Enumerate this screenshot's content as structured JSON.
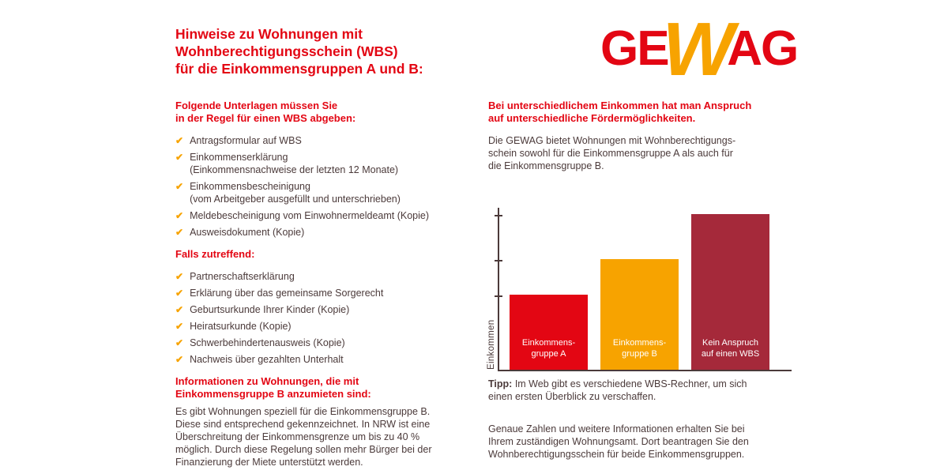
{
  "colors": {
    "brand_red": "#e30613",
    "accent_orange": "#f7a300",
    "dark_red": "#a5293a",
    "body_text": "#4b3a3a"
  },
  "icons": {
    "check": "✔"
  },
  "logo": {
    "ge": "GE",
    "w": "W",
    "ag": "AG"
  },
  "title": "Hinweise zu Wohnungen mit\nWohnberechtigungsschein (WBS)\nfür die Einkommensgruppen A und B:",
  "left": {
    "documents_heading": "Folgende Unterlagen müssen Sie\nin der Regel für einen WBS abgeben:",
    "documents": [
      "Antragsformular auf WBS",
      "Einkommenserklärung\n(Einkommensnachweise der letzten 12 Monate)",
      "Einkommensbescheinigung\n(vom Arbeitgeber ausgefüllt und unterschrieben)",
      "Meldebescheinigung vom Einwohnermeldeamt (Kopie)",
      "Ausweisdokument (Kopie)"
    ],
    "conditional_heading": "Falls zutreffend:",
    "conditional": [
      "Partnerschaftserklärung",
      "Erklärung über das gemeinsame Sorgerecht",
      "Geburtsurkunde Ihrer Kinder (Kopie)",
      "Heiratsurkunde (Kopie)",
      "Schwerbehindertenausweis (Kopie)",
      "Nachweis über gezahlten Unterhalt"
    ],
    "info_heading": "Informationen zu Wohnungen, die mit\nEinkommensgruppe B anzumieten sind:",
    "info_text": "Es gibt Wohnungen speziell für die Einkommensgruppe B.\nDiese sind entsprechend gekennzeichnet. In NRW ist eine\nÜberschreitung der Einkommensgrenze um bis zu 40 %\nmöglich. Durch diese Regelung sollen mehr Bürger bei der\nFinanzierung der Miete unterstützt werden."
  },
  "right": {
    "heading": "Bei unterschiedlichem Einkommen hat man Anspruch\nauf unterschiedliche Fördermöglichkeiten.",
    "intro": "Die GEWAG bietet Wohnungen mit Wohnberechtigungs-\nschein sowohl für die Einkommensgruppe A als auch für\ndie Einkommensgruppe B.",
    "tip_label": "Tipp:",
    "tip_text": "Im Web gibt es verschiedene WBS-Rechner, um sich\neinen ersten Überblick zu verschaffen.",
    "outro": "Genaue Zahlen und weitere Informationen erhalten Sie bei\nIhrem zuständigen Wohnungsamt. Dort beantragen Sie den\nWohnberechtigungsschein für beide Einkommensgruppen."
  },
  "chart_data": {
    "type": "bar",
    "title": "",
    "xlabel": "",
    "ylabel": "Einkommen",
    "categories": [
      "Einkommens-\ngruppe A",
      "Einkommens-\ngruppe B",
      "Kein Anspruch\nauf einen WBS"
    ],
    "values": [
      95,
      140,
      197
    ],
    "value_scale": "relative height (no numeric axis labels shown)",
    "bar_colors": [
      "#e30613",
      "#f7a300",
      "#a5293a"
    ],
    "grid": false,
    "legend": "none"
  }
}
